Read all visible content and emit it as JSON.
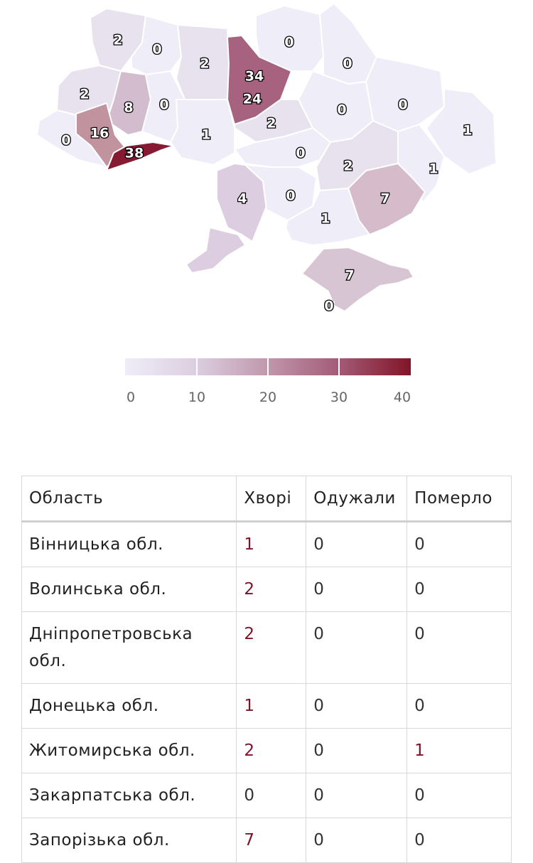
{
  "map": {
    "legend": {
      "ticks": [
        "0",
        "10",
        "20",
        "30",
        "40"
      ],
      "colors": [
        "#efedf8",
        "#dccee0",
        "#c097ac",
        "#a35a76",
        "#821428"
      ]
    },
    "regions": [
      {
        "key": "volyn",
        "value": "2"
      },
      {
        "key": "rivne",
        "value": "0"
      },
      {
        "key": "zhytomyr",
        "value": "2"
      },
      {
        "key": "kyiv_oblast",
        "value": "34"
      },
      {
        "key": "kyiv_city",
        "value": "24"
      },
      {
        "key": "chernihiv",
        "value": "0"
      },
      {
        "key": "sumy",
        "value": "0"
      },
      {
        "key": "lviv",
        "value": "2"
      },
      {
        "key": "ternopil",
        "value": "8"
      },
      {
        "key": "khmelnytskyi",
        "value": "0"
      },
      {
        "key": "poltava",
        "value": "0"
      },
      {
        "key": "kharkiv",
        "value": "0"
      },
      {
        "key": "luhansk",
        "value": "1"
      },
      {
        "key": "zakarpattia",
        "value": "0"
      },
      {
        "key": "ivano_frankivsk",
        "value": "16"
      },
      {
        "key": "chernivtsi",
        "value": "38"
      },
      {
        "key": "vinnytsia",
        "value": "1"
      },
      {
        "key": "cherkasy",
        "value": "2"
      },
      {
        "key": "kirovohrad",
        "value": "0"
      },
      {
        "key": "dnipropetrovsk",
        "value": "2"
      },
      {
        "key": "donetsk",
        "value": "1"
      },
      {
        "key": "odesa",
        "value": "4"
      },
      {
        "key": "mykolaiv",
        "value": "0"
      },
      {
        "key": "zaporizhzhia",
        "value": "7"
      },
      {
        "key": "kherson",
        "value": "1"
      },
      {
        "key": "crimea",
        "value": "7"
      },
      {
        "key": "sevastopol",
        "value": "0"
      }
    ]
  },
  "table": {
    "headers": [
      "Область",
      "Хворі",
      "Одужали",
      "Померло"
    ],
    "rows": [
      {
        "region": "Вінницька обл.",
        "sick": "1",
        "recovered": "0",
        "died": "0"
      },
      {
        "region": "Волинська обл.",
        "sick": "2",
        "recovered": "0",
        "died": "0"
      },
      {
        "region": "Дніпропетровська обл.",
        "sick": "2",
        "recovered": "0",
        "died": "0"
      },
      {
        "region": "Донецька обл.",
        "sick": "1",
        "recovered": "0",
        "died": "0"
      },
      {
        "region": "Житомирська обл.",
        "sick": "2",
        "recovered": "0",
        "died": "1"
      },
      {
        "region": "Закарпатська обл.",
        "sick": "0",
        "recovered": "0",
        "died": "0"
      },
      {
        "region": "Запорізька обл.",
        "sick": "7",
        "recovered": "0",
        "died": "0"
      }
    ]
  }
}
